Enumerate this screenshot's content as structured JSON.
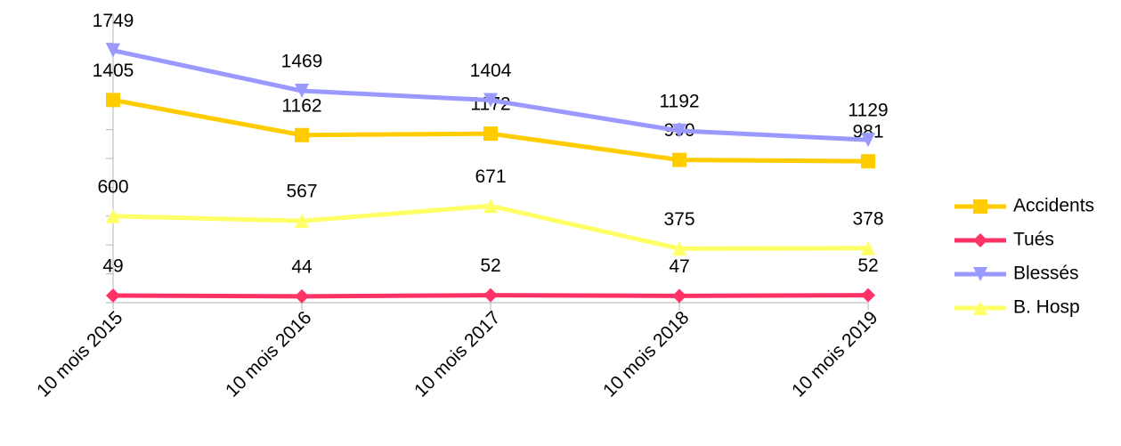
{
  "chart_data": {
    "type": "line",
    "categories": [
      "10 mois 2015",
      "10 mois 2016",
      "10 mois 2017",
      "10 mois 2018",
      "10 mois 2019"
    ],
    "series": [
      {
        "name": "Accidents",
        "color": "#ffcc00",
        "marker": "square",
        "values": [
          1405,
          1162,
          1172,
          990,
          981
        ]
      },
      {
        "name": "Tués",
        "color": "#ff3366",
        "marker": "diamond",
        "values": [
          49,
          44,
          52,
          47,
          52
        ]
      },
      {
        "name": "Blessés",
        "color": "#9999ff",
        "marker": "triangle-down",
        "values": [
          1749,
          1469,
          1404,
          1192,
          1129
        ]
      },
      {
        "name": "B. Hosp",
        "color": "#ffff66",
        "marker": "triangle-up",
        "values": [
          600,
          567,
          671,
          375,
          378
        ]
      }
    ],
    "ylim": [
      0,
      2000
    ],
    "yticks": [
      0,
      200,
      400,
      600,
      800,
      1000,
      1200,
      1400,
      1600,
      1800,
      2000
    ],
    "legend": "right"
  }
}
